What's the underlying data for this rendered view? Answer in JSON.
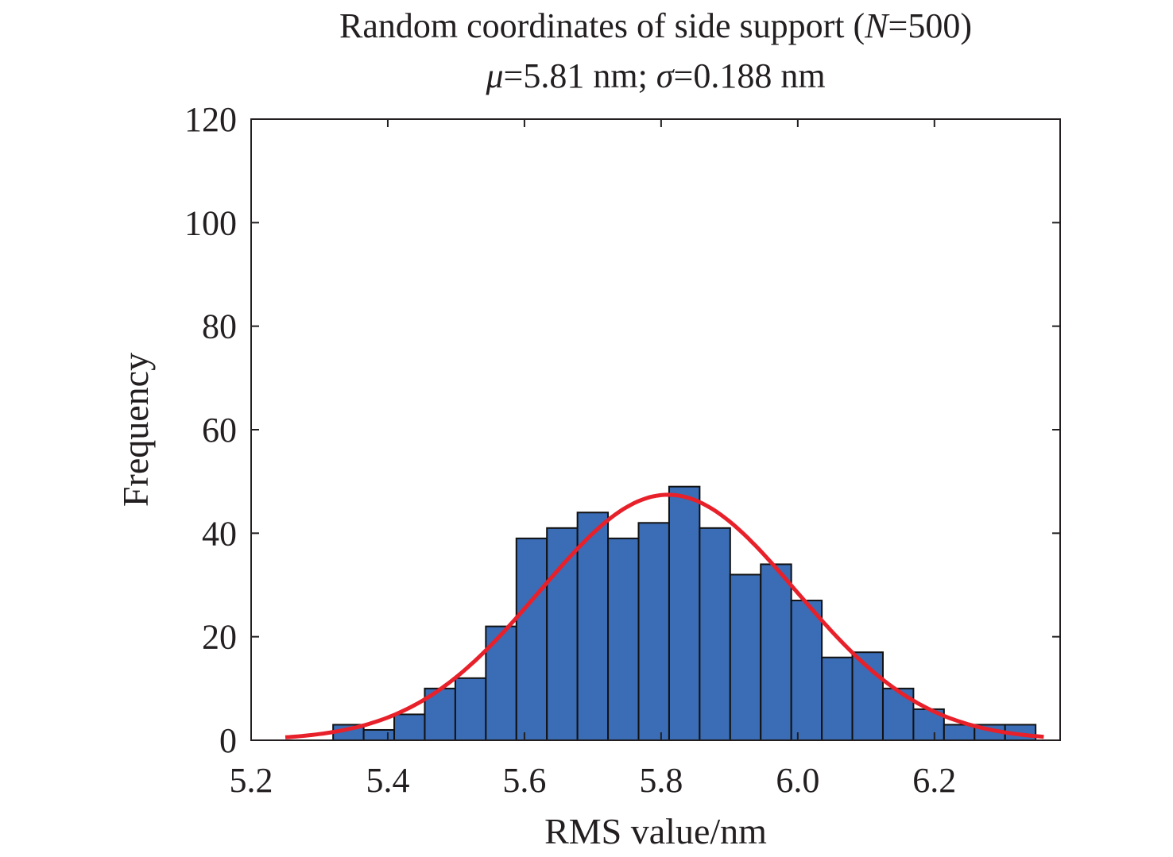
{
  "chart_data": {
    "type": "bar",
    "title_line1_prefix": "Random coordinates of side support (",
    "title_line1_italic": "N",
    "title_line1_suffix": "=500)",
    "title_line2_mu": "μ",
    "title_line2_mid": "=5.81 nm; ",
    "title_line2_sigma": "σ",
    "title_line2_end": "=0.188 nm",
    "xlabel": "RMS value/nm",
    "ylabel": "Frequency",
    "xlim": [
      5.2,
      6.384
    ],
    "ylim": [
      0,
      120
    ],
    "xticks": [
      "5.2",
      "5.4",
      "5.6",
      "5.8",
      "6.0",
      "6.2"
    ],
    "yticks": [
      "0",
      "20",
      "40",
      "60",
      "80",
      "100",
      "120"
    ],
    "bin_start": 5.32,
    "bin_width": 0.0447,
    "values": [
      3,
      2,
      5,
      10,
      12,
      22,
      39,
      41,
      44,
      39,
      42,
      49,
      41,
      32,
      34,
      27,
      16,
      17,
      10,
      6,
      3,
      3,
      3
    ],
    "fit": {
      "type": "normal",
      "mean": 5.81,
      "std": 0.188,
      "n": 500,
      "x_range": [
        5.25,
        6.36
      ]
    },
    "colors": {
      "bar": "#3a6db5",
      "edge": "#111111",
      "fit": "#e8202a"
    },
    "grid": false
  }
}
